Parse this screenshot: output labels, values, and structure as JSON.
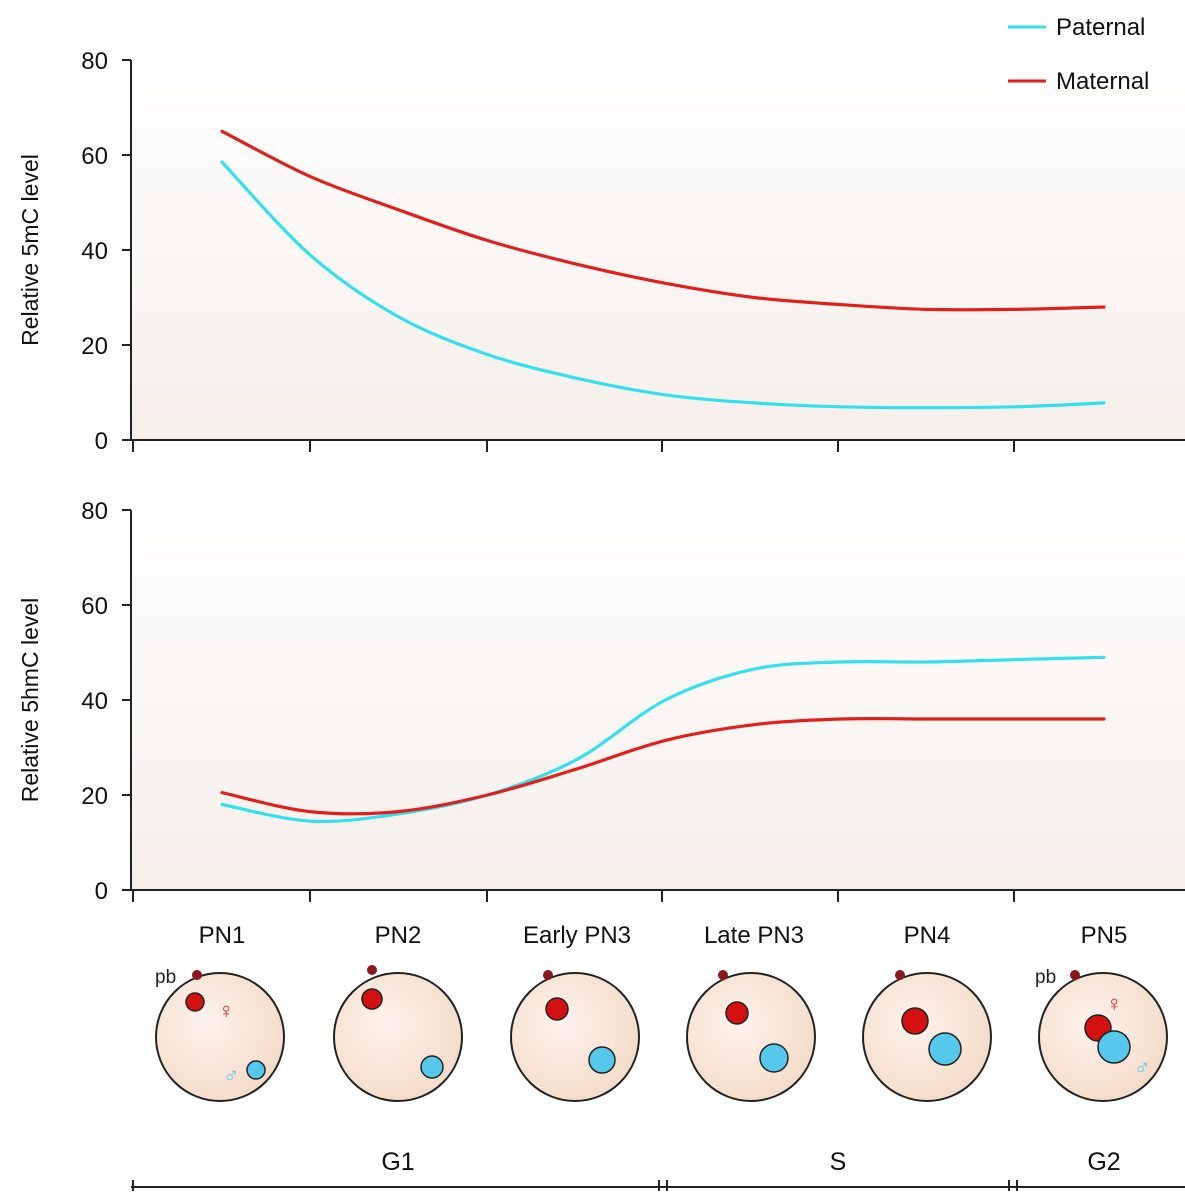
{
  "legend": {
    "paternal_label": "Paternal",
    "maternal_label": "Maternal",
    "placement": "top-right"
  },
  "colors": {
    "paternal": "#33e0ee",
    "maternal": "#e0201c",
    "nucleus_maternal": "#d41010",
    "nucleus_paternal": "#55c8ec",
    "polar_body": "#8a1620",
    "embryo_fill": "#f7e3d4",
    "panel_bg": "#f9f4f0"
  },
  "chart_data": [
    {
      "type": "line",
      "categories": [
        "PN1",
        "PN2",
        "Early PN3",
        "Late PN3",
        "PN4",
        "PN5"
      ],
      "ylabel": "Relative 5mC level",
      "ylim": [
        0,
        80
      ],
      "yticks": [
        0,
        20,
        40,
        60,
        80
      ],
      "grid": false,
      "series": [
        {
          "name": "Paternal",
          "color": "#33e0ee",
          "x": [
            0,
            0.5,
            1,
            1.5,
            2,
            2.5,
            3,
            3.5,
            4,
            4.5,
            5
          ],
          "values": [
            58.5,
            39,
            26,
            18,
            13,
            9.5,
            7.8,
            7,
            6.8,
            7,
            7.8
          ]
        },
        {
          "name": "Maternal",
          "color": "#e0201c",
          "x": [
            0,
            0.5,
            1,
            1.5,
            2,
            2.5,
            3,
            3.5,
            4,
            4.5,
            5
          ],
          "values": [
            65,
            55.5,
            48.5,
            42,
            37,
            33,
            30,
            28.5,
            27.5,
            27.5,
            28
          ]
        }
      ]
    },
    {
      "type": "line",
      "categories": [
        "PN1",
        "PN2",
        "Early PN3",
        "Late PN3",
        "PN4",
        "PN5"
      ],
      "ylabel": "Relative 5hmC level",
      "ylim": [
        0,
        80
      ],
      "yticks": [
        0,
        20,
        40,
        60,
        80
      ],
      "grid": false,
      "series": [
        {
          "name": "Paternal",
          "color": "#33e0ee",
          "x": [
            0,
            0.5,
            1,
            1.5,
            2,
            2.5,
            3,
            3.5,
            4,
            4.5,
            5
          ],
          "values": [
            18,
            14.5,
            16,
            20,
            27.5,
            40,
            46.5,
            48,
            48,
            48.5,
            49
          ]
        },
        {
          "name": "Maternal",
          "color": "#e0201c",
          "x": [
            0,
            0.5,
            1,
            1.5,
            2,
            2.5,
            3,
            3.5,
            4,
            4.5,
            5
          ],
          "values": [
            20.5,
            16.5,
            16.5,
            20,
            25.5,
            31.5,
            34.8,
            36,
            36,
            36,
            36
          ]
        }
      ]
    }
  ],
  "stages": [
    "PN1",
    "PN2",
    "Early PN3",
    "Late PN3",
    "PN4",
    "PN5"
  ],
  "embryo_annotations": {
    "polar_body": "pb",
    "female_symbol": "♀",
    "male_symbol": "♂"
  },
  "phases": [
    "G1",
    "S",
    "G2"
  ]
}
